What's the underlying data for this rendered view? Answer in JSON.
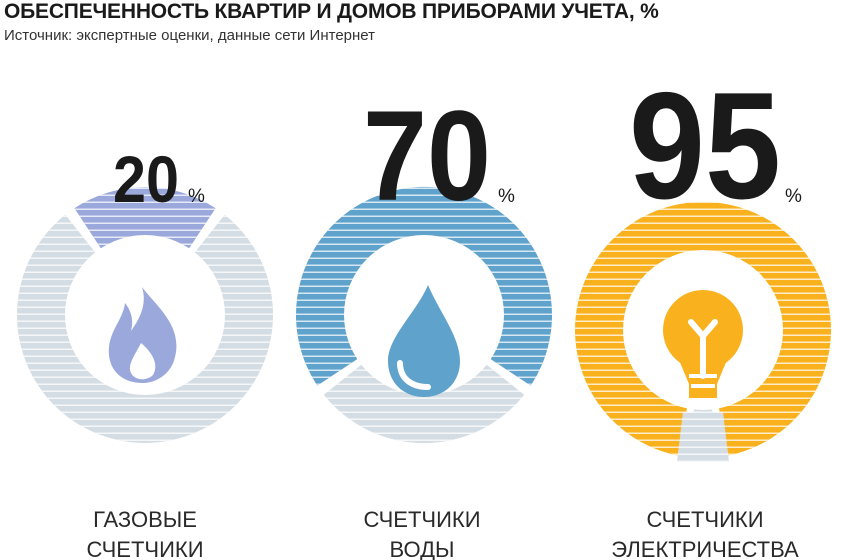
{
  "title": "ОБЕСПЕЧЕННОСТЬ КВАРТИР И ДОМОВ ПРИБОРАМИ УЧЕТА, %",
  "subtitle": "Источник: экспертные оценки, данные сети Интернет",
  "colors": {
    "gas": "#9aa8dc",
    "water": "#5fa2cc",
    "electricity": "#f9b21e",
    "remainder": "#d4dde4",
    "inner": "#ffffff"
  },
  "chart_data": [
    {
      "type": "pie",
      "category": "ГАЗОВЫЕ СЧЕТЧИКИ",
      "label_lines": [
        "ГАЗОВЫЕ",
        "СЧЕТЧИКИ"
      ],
      "value": 20,
      "value_label": "20",
      "unit": "%",
      "icon": "flame-icon"
    },
    {
      "type": "pie",
      "category": "СЧЕТЧИКИ ВОДЫ",
      "label_lines": [
        "СЧЕТЧИКИ",
        "ВОДЫ"
      ],
      "value": 70,
      "value_label": "70",
      "unit": "%",
      "icon": "water-drop-icon"
    },
    {
      "type": "pie",
      "category": "СЧЕТЧИКИ ЭЛЕКТРИЧЕСТВА",
      "label_lines": [
        "СЧЕТЧИКИ",
        "ЭЛЕКТРИЧЕСТВА"
      ],
      "value": 95,
      "value_label": "95",
      "unit": "%",
      "icon": "light-bulb-icon"
    }
  ]
}
